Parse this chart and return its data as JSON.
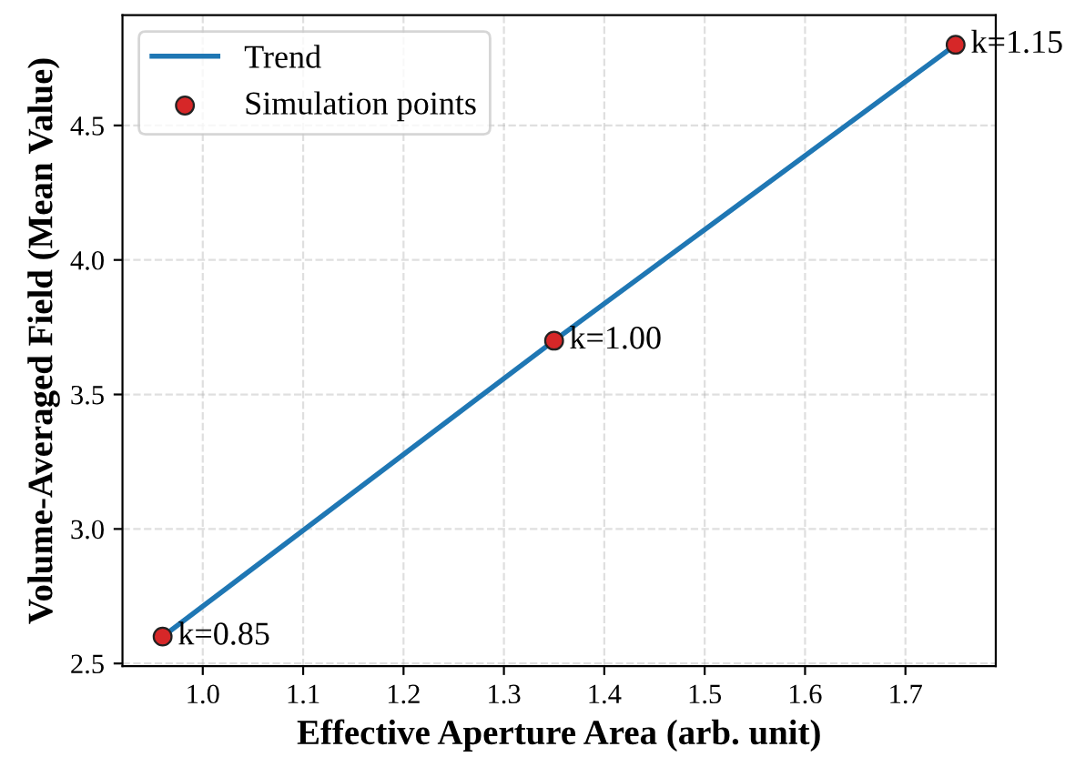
{
  "chart_data": {
    "type": "scatter",
    "xlabel": "Effective Aperture Area (arb. unit)",
    "ylabel": "Volume-Averaged Field (Mean Value)",
    "series": [
      {
        "name": "Trend",
        "type": "line",
        "color": "#1f77b4",
        "x": [
          0.96,
          1.35,
          1.75
        ],
        "values": [
          2.6,
          3.7,
          4.8
        ],
        "marker": "none"
      },
      {
        "name": "Simulation points",
        "color": "#d62728",
        "x": [
          0.96,
          1.35,
          1.75
        ],
        "values": [
          2.6,
          3.7,
          4.8
        ],
        "marker": "circle"
      }
    ],
    "annotations": [
      {
        "text": "k=0.85",
        "x": 0.96,
        "y": 2.6
      },
      {
        "text": "k=1.00",
        "x": 1.35,
        "y": 3.7
      },
      {
        "text": "k=1.15",
        "x": 1.75,
        "y": 4.8
      }
    ],
    "xlim": [
      0.92,
      1.79
    ],
    "xticks": [
      {
        "value": 1,
        "label": "1.0"
      },
      1.1,
      1.2,
      1.3,
      1.4,
      1.5,
      1.6,
      1.7
    ],
    "ylim": [
      2.49,
      4.91
    ],
    "yticks": [
      2.5,
      {
        "value": 3,
        "label": "3.0"
      },
      3.5,
      {
        "value": 4,
        "label": "4.0"
      },
      4.5
    ],
    "grid": true,
    "legend": "top left"
  }
}
